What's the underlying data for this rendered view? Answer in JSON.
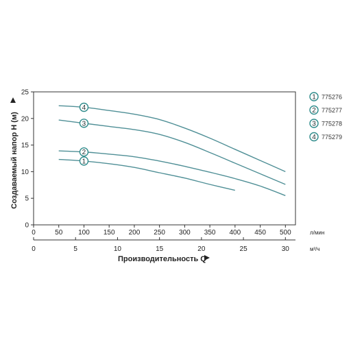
{
  "chart_data": {
    "type": "line",
    "title": "",
    "xlabel": "Производительность Q",
    "ylabel": "Создаваемый напор H (м)",
    "x_unit_top": "л/мин",
    "x_unit_bottom": "м³/ч",
    "xlim": [
      0,
      500
    ],
    "ylim": [
      0,
      25
    ],
    "x_ticks_top": [
      "0",
      "50",
      "100",
      "150",
      "200",
      "250",
      "300",
      "350",
      "400",
      "450",
      "500"
    ],
    "x_ticks_bottom": [
      "0",
      "5",
      "10",
      "15",
      "20",
      "25",
      "30"
    ],
    "x_ticks_bottom_values": [
      0,
      5,
      10,
      15,
      20,
      25,
      30
    ],
    "y_ticks": [
      "0",
      "5",
      "10",
      "15",
      "20",
      "25"
    ],
    "grid": false,
    "legend_position": "right",
    "line_color": "#4f8f96",
    "marker_color": "#2e8b8b",
    "series": [
      {
        "name": "775276",
        "marker": "1",
        "marker_x": 100,
        "x": [
          50,
          100,
          150,
          200,
          250,
          300,
          350,
          400
        ],
        "y": [
          12.3,
          12.0,
          11.5,
          10.8,
          9.8,
          8.8,
          7.6,
          6.5
        ]
      },
      {
        "name": "775277",
        "marker": "2",
        "marker_x": 100,
        "x": [
          50,
          100,
          150,
          200,
          250,
          300,
          350,
          400,
          450,
          500
        ],
        "y": [
          13.9,
          13.7,
          13.3,
          12.8,
          12.0,
          11.0,
          9.9,
          8.7,
          7.3,
          5.5
        ]
      },
      {
        "name": "775278",
        "marker": "3",
        "marker_x": 100,
        "x": [
          50,
          100,
          150,
          200,
          250,
          300,
          350,
          400,
          450,
          500
        ],
        "y": [
          19.7,
          19.1,
          18.5,
          17.9,
          17.0,
          15.5,
          13.6,
          11.6,
          9.6,
          7.6
        ]
      },
      {
        "name": "775279",
        "marker": "4",
        "marker_x": 100,
        "x": [
          50,
          100,
          150,
          200,
          250,
          300,
          350,
          400,
          450,
          500
        ],
        "y": [
          22.4,
          22.1,
          21.5,
          20.8,
          19.8,
          18.2,
          16.3,
          14.2,
          12.1,
          10.0
        ]
      }
    ]
  }
}
